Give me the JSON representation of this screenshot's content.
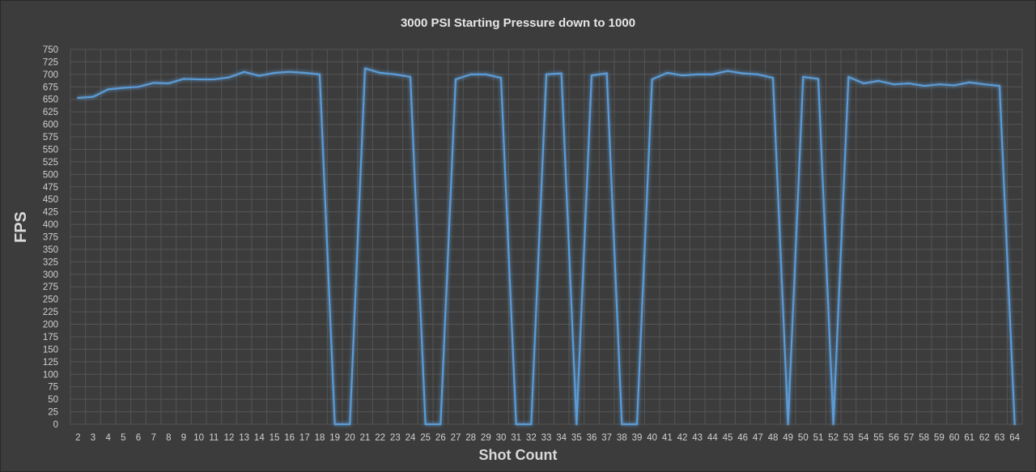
{
  "chart_data": {
    "type": "line",
    "title": "3000 PSI Starting Pressure down to 1000",
    "xlabel": "Shot Count",
    "ylabel": "FPS",
    "ylim": [
      0,
      750
    ],
    "ytick_step": 25,
    "grid": true,
    "line_color": "#5b9bd5",
    "x": [
      2,
      3,
      4,
      5,
      6,
      7,
      8,
      9,
      10,
      11,
      12,
      13,
      14,
      15,
      16,
      17,
      18,
      19,
      20,
      21,
      22,
      23,
      24,
      25,
      26,
      27,
      28,
      29,
      30,
      31,
      32,
      33,
      34,
      35,
      36,
      37,
      38,
      39,
      40,
      41,
      42,
      43,
      44,
      45,
      46,
      47,
      48,
      49,
      50,
      51,
      52,
      53,
      54,
      55,
      56,
      57,
      58,
      59,
      60,
      61,
      62,
      63,
      64
    ],
    "series": [
      {
        "values": [
          653,
          655,
          670,
          673,
          675,
          683,
          682,
          691,
          690,
          690,
          694,
          705,
          697,
          703,
          705,
          703,
          700,
          0,
          0,
          712,
          703,
          700,
          695,
          0,
          0,
          690,
          700,
          700,
          693,
          0,
          0,
          700,
          702,
          0,
          698,
          702,
          0,
          0,
          690,
          703,
          698,
          700,
          700,
          707,
          702,
          700,
          693,
          0,
          695,
          691,
          0,
          695,
          682,
          687,
          680,
          682,
          677,
          680,
          678,
          684,
          680,
          677,
          0
        ]
      }
    ]
  }
}
